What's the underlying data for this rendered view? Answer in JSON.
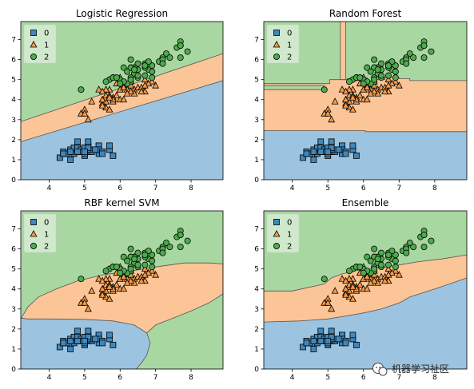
{
  "watermark": "机器学习社区",
  "colors": {
    "region": [
      "#9cc3df",
      "#fbc597",
      "#a9d7a2"
    ],
    "marker": [
      "#3f88bd",
      "#f59a4a",
      "#4daa4d"
    ]
  },
  "chart_data": [
    {
      "type": "scatter",
      "title": "Logistic Regression",
      "xlim": [
        3.2,
        8.9
      ],
      "ylim": [
        0,
        7.9
      ],
      "xticks": [
        "4",
        "5",
        "6",
        "7",
        "8"
      ],
      "yticks": [
        "0",
        "1",
        "2",
        "3",
        "4",
        "5",
        "6",
        "7"
      ],
      "legend": {
        "position": "upper-left",
        "labels": [
          "0",
          "1",
          "2"
        ]
      },
      "decision_boundaries": [
        {
          "between": [
            "0",
            "1"
          ],
          "points": [
            [
              3.2,
              1.9
            ],
            [
              8.9,
              4.95
            ]
          ]
        },
        {
          "between": [
            "1",
            "2"
          ],
          "points": [
            [
              3.2,
              2.9
            ],
            [
              8.9,
              6.3
            ]
          ]
        }
      ]
    },
    {
      "type": "scatter",
      "title": "Random Forest",
      "xlim": [
        3.2,
        8.9
      ],
      "ylim": [
        0,
        7.9
      ],
      "xticks": [
        "4",
        "5",
        "6",
        "7",
        "8"
      ],
      "yticks": [
        "0",
        "1",
        "2",
        "3",
        "4",
        "5",
        "6",
        "7"
      ],
      "legend": {
        "position": "upper-left",
        "labels": [
          "0",
          "1",
          "2"
        ]
      },
      "decision_boundaries": [
        {
          "between": [
            "0",
            "1"
          ],
          "points": [
            [
              3.2,
              2.45
            ],
            [
              6.05,
              2.45
            ],
            [
              6.05,
              2.4
            ],
            [
              8.9,
              2.4
            ]
          ]
        },
        {
          "between": [
            "1",
            "2"
          ],
          "points": [
            [
              3.2,
              4.5
            ],
            [
              4.9,
              4.5
            ],
            [
              4.9,
              4.7
            ],
            [
              3.2,
              4.7
            ],
            [
              3.2,
              4.8
            ],
            [
              5.05,
              4.8
            ],
            [
              5.05,
              5.0
            ],
            [
              5.55,
              5.0
            ],
            [
              5.55,
              5.05
            ],
            [
              5.75,
              5.05
            ],
            [
              5.75,
              4.95
            ],
            [
              5.85,
              4.95
            ],
            [
              5.85,
              5.05
            ],
            [
              5.95,
              5.05
            ],
            [
              5.95,
              5.2
            ],
            [
              6.0,
              5.2
            ],
            [
              6.0,
              5.1
            ],
            [
              6.1,
              5.1
            ],
            [
              6.1,
              4.9
            ],
            [
              6.3,
              4.9
            ],
            [
              6.3,
              5.0
            ],
            [
              6.6,
              5.0
            ],
            [
              6.6,
              5.1
            ],
            [
              7.0,
              5.1
            ],
            [
              7.0,
              5.05
            ],
            [
              7.3,
              5.05
            ],
            [
              7.3,
              4.95
            ],
            [
              8.9,
              4.95
            ]
          ]
        },
        {
          "between": [
            "2",
            "1"
          ],
          "points": [
            [
              5.35,
              7.9
            ],
            [
              5.35,
              5.0
            ],
            [
              5.5,
              5.0
            ],
            [
              5.5,
              7.9
            ]
          ]
        }
      ]
    },
    {
      "type": "scatter",
      "title": "RBF kernel SVM",
      "xlim": [
        3.2,
        8.9
      ],
      "ylim": [
        0,
        7.9
      ],
      "xticks": [
        "4",
        "5",
        "6",
        "7",
        "8"
      ],
      "yticks": [
        "0",
        "1",
        "2",
        "3",
        "4",
        "5",
        "6",
        "7"
      ],
      "legend": {
        "position": "upper-left",
        "labels": [
          "0",
          "1",
          "2"
        ]
      },
      "decision_boundaries": [
        {
          "between": [
            "0",
            "1"
          ],
          "points": [
            [
              3.2,
              2.55
            ],
            [
              3.4,
              2.5
            ],
            [
              4.0,
              2.5
            ],
            [
              5.0,
              2.48
            ],
            [
              5.8,
              2.4
            ],
            [
              6.4,
              2.2
            ],
            [
              6.75,
              1.8
            ],
            [
              6.85,
              1.3
            ],
            [
              6.75,
              0.7
            ],
            [
              6.6,
              0.3
            ],
            [
              6.45,
              0.0
            ]
          ]
        },
        {
          "between": [
            "1",
            "2"
          ],
          "points": [
            [
              3.2,
              2.5
            ],
            [
              3.4,
              3.1
            ],
            [
              3.7,
              3.6
            ],
            [
              4.2,
              4.0
            ],
            [
              4.8,
              4.4
            ],
            [
              5.5,
              4.7
            ],
            [
              6.3,
              4.9
            ],
            [
              7.0,
              5.1
            ],
            [
              7.8,
              5.3
            ],
            [
              8.5,
              5.3
            ],
            [
              8.9,
              5.25
            ],
            [
              8.9,
              3.75
            ],
            [
              8.5,
              3.3
            ],
            [
              8.0,
              2.9
            ],
            [
              7.5,
              2.55
            ],
            [
              7.0,
              2.2
            ],
            [
              6.75,
              1.8
            ]
          ]
        }
      ]
    },
    {
      "type": "scatter",
      "title": "Ensemble",
      "xlim": [
        3.2,
        8.9
      ],
      "ylim": [
        0,
        7.9
      ],
      "xticks": [
        "4",
        "5",
        "6",
        "7",
        "8"
      ],
      "yticks": [
        "0",
        "1",
        "2",
        "3",
        "4",
        "5",
        "6",
        "7"
      ],
      "legend": {
        "position": "upper-left",
        "labels": [
          "0",
          "1",
          "2"
        ]
      },
      "decision_boundaries": [
        {
          "between": [
            "0",
            "1"
          ],
          "points": [
            [
              3.2,
              2.35
            ],
            [
              4.2,
              2.4
            ],
            [
              5.0,
              2.5
            ],
            [
              5.5,
              2.65
            ],
            [
              6.0,
              2.8
            ],
            [
              6.5,
              3.0
            ],
            [
              7.0,
              3.3
            ],
            [
              7.3,
              3.6
            ],
            [
              8.0,
              4.0
            ],
            [
              8.9,
              4.55
            ]
          ]
        },
        {
          "between": [
            "1",
            "2"
          ],
          "points": [
            [
              3.2,
              3.9
            ],
            [
              4.0,
              3.9
            ],
            [
              4.9,
              4.25
            ],
            [
              5.1,
              4.55
            ],
            [
              5.4,
              4.75
            ],
            [
              5.9,
              4.95
            ],
            [
              6.5,
              5.05
            ],
            [
              7.0,
              5.2
            ],
            [
              7.5,
              5.35
            ],
            [
              8.2,
              5.5
            ],
            [
              8.9,
              5.7
            ]
          ]
        }
      ]
    }
  ],
  "iris_points": [
    {
      "class": "0",
      "points": [
        [
          5.1,
          1.4
        ],
        [
          4.9,
          1.4
        ],
        [
          4.7,
          1.3
        ],
        [
          4.6,
          1.5
        ],
        [
          5.0,
          1.4
        ],
        [
          5.4,
          1.7
        ],
        [
          4.6,
          1.4
        ],
        [
          5.0,
          1.5
        ],
        [
          4.4,
          1.4
        ],
        [
          4.9,
          1.5
        ],
        [
          5.4,
          1.5
        ],
        [
          4.8,
          1.6
        ],
        [
          4.8,
          1.4
        ],
        [
          4.3,
          1.1
        ],
        [
          5.8,
          1.2
        ],
        [
          5.7,
          1.5
        ],
        [
          5.4,
          1.3
        ],
        [
          5.1,
          1.4
        ],
        [
          5.7,
          1.7
        ],
        [
          5.1,
          1.5
        ],
        [
          5.4,
          1.7
        ],
        [
          5.1,
          1.5
        ],
        [
          4.6,
          1.0
        ],
        [
          5.1,
          1.7
        ],
        [
          4.8,
          1.9
        ],
        [
          5.0,
          1.6
        ],
        [
          5.0,
          1.6
        ],
        [
          5.2,
          1.5
        ],
        [
          5.2,
          1.4
        ],
        [
          4.7,
          1.6
        ],
        [
          4.8,
          1.6
        ],
        [
          5.4,
          1.5
        ],
        [
          5.2,
          1.5
        ],
        [
          5.5,
          1.4
        ],
        [
          4.9,
          1.5
        ],
        [
          5.0,
          1.2
        ],
        [
          5.5,
          1.3
        ],
        [
          4.9,
          1.4
        ],
        [
          4.4,
          1.3
        ],
        [
          5.1,
          1.5
        ],
        [
          5.0,
          1.3
        ],
        [
          4.5,
          1.3
        ],
        [
          4.4,
          1.3
        ],
        [
          5.0,
          1.6
        ],
        [
          5.1,
          1.9
        ],
        [
          4.8,
          1.4
        ],
        [
          5.1,
          1.6
        ],
        [
          4.6,
          1.4
        ],
        [
          5.3,
          1.5
        ],
        [
          5.0,
          1.4
        ]
      ]
    },
    {
      "class": "1",
      "points": [
        [
          7.0,
          4.7
        ],
        [
          6.4,
          4.5
        ],
        [
          6.9,
          4.9
        ],
        [
          5.5,
          4.0
        ],
        [
          6.5,
          4.6
        ],
        [
          5.7,
          4.5
        ],
        [
          6.3,
          4.7
        ],
        [
          4.9,
          3.3
        ],
        [
          6.6,
          4.6
        ],
        [
          5.2,
          3.9
        ],
        [
          5.0,
          3.5
        ],
        [
          5.9,
          4.2
        ],
        [
          6.0,
          4.0
        ],
        [
          6.1,
          4.7
        ],
        [
          5.6,
          3.6
        ],
        [
          6.7,
          4.4
        ],
        [
          5.6,
          4.5
        ],
        [
          5.8,
          4.1
        ],
        [
          6.2,
          4.5
        ],
        [
          5.6,
          3.9
        ],
        [
          5.9,
          4.8
        ],
        [
          6.1,
          4.0
        ],
        [
          6.3,
          4.9
        ],
        [
          6.1,
          4.7
        ],
        [
          6.4,
          4.3
        ],
        [
          6.6,
          4.4
        ],
        [
          6.8,
          4.8
        ],
        [
          6.7,
          5.0
        ],
        [
          6.0,
          4.5
        ],
        [
          5.7,
          3.5
        ],
        [
          5.5,
          3.8
        ],
        [
          5.5,
          3.7
        ],
        [
          5.8,
          3.9
        ],
        [
          6.0,
          5.1
        ],
        [
          5.4,
          4.5
        ],
        [
          6.0,
          4.5
        ],
        [
          6.7,
          4.7
        ],
        [
          6.3,
          4.4
        ],
        [
          5.6,
          4.1
        ],
        [
          5.5,
          4.0
        ],
        [
          5.5,
          4.4
        ],
        [
          6.1,
          4.6
        ],
        [
          5.8,
          4.0
        ],
        [
          5.0,
          3.3
        ],
        [
          5.6,
          4.2
        ],
        [
          5.7,
          4.2
        ],
        [
          5.7,
          4.2
        ],
        [
          6.2,
          4.3
        ],
        [
          5.1,
          3.0
        ],
        [
          5.7,
          4.1
        ]
      ]
    },
    {
      "class": "2",
      "points": [
        [
          6.3,
          6.0
        ],
        [
          5.8,
          5.1
        ],
        [
          7.1,
          5.9
        ],
        [
          6.3,
          5.6
        ],
        [
          6.5,
          5.8
        ],
        [
          7.6,
          6.6
        ],
        [
          4.9,
          4.5
        ],
        [
          7.3,
          6.3
        ],
        [
          6.7,
          5.8
        ],
        [
          7.2,
          6.1
        ],
        [
          6.5,
          5.1
        ],
        [
          6.4,
          5.3
        ],
        [
          6.8,
          5.5
        ],
        [
          5.7,
          5.0
        ],
        [
          5.8,
          5.1
        ],
        [
          6.4,
          5.3
        ],
        [
          6.5,
          5.5
        ],
        [
          7.7,
          6.7
        ],
        [
          7.7,
          6.9
        ],
        [
          6.0,
          5.0
        ],
        [
          6.9,
          5.7
        ],
        [
          5.6,
          4.9
        ],
        [
          7.7,
          6.7
        ],
        [
          6.3,
          4.9
        ],
        [
          6.7,
          5.7
        ],
        [
          7.2,
          6.0
        ],
        [
          6.2,
          4.8
        ],
        [
          6.1,
          4.9
        ],
        [
          6.4,
          5.6
        ],
        [
          7.2,
          5.8
        ],
        [
          7.4,
          6.1
        ],
        [
          7.9,
          6.4
        ],
        [
          6.4,
          5.6
        ],
        [
          6.3,
          5.1
        ],
        [
          6.1,
          5.6
        ],
        [
          7.7,
          6.1
        ],
        [
          6.3,
          5.6
        ],
        [
          6.4,
          5.5
        ],
        [
          6.0,
          4.8
        ],
        [
          6.9,
          5.4
        ],
        [
          6.7,
          5.6
        ],
        [
          6.9,
          5.1
        ],
        [
          5.8,
          5.1
        ],
        [
          6.8,
          5.9
        ],
        [
          6.7,
          5.7
        ],
        [
          6.7,
          5.2
        ],
        [
          6.3,
          5.0
        ],
        [
          6.5,
          5.2
        ],
        [
          6.2,
          5.4
        ],
        [
          5.9,
          5.1
        ]
      ]
    }
  ]
}
